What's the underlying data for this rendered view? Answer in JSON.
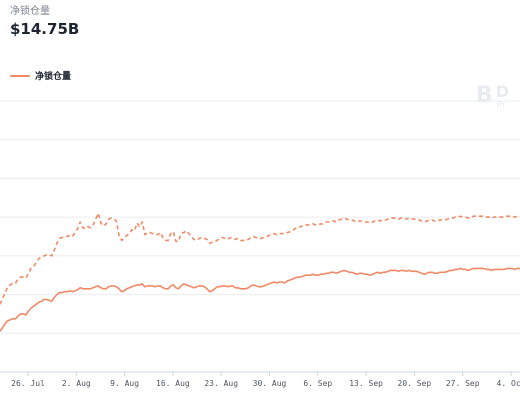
{
  "header": {
    "metric_label": "净锁仓量",
    "metric_value": "$14.75B"
  },
  "watermark": {
    "logo": "B",
    "title": "D",
    "subtitle": "Yo"
  },
  "colors": {
    "line": "#f08a66",
    "grid": "#e9ecef",
    "tick_text": "#4b5563"
  },
  "chart_data": {
    "type": "line",
    "title": "",
    "xlabel": "",
    "ylabel": "",
    "grid": true,
    "legend": "top-left",
    "x_tick_labels": [
      "26. Jul",
      "2. Aug",
      "9. Aug",
      "16. Aug",
      "23. Aug",
      "30. Aug",
      "6. Sep",
      "13. Sep",
      "20. Sep",
      "27. Sep",
      "4. Oct"
    ],
    "y_gridline_count": 7,
    "series": [
      {
        "name": "净锁仓量",
        "style": "solid",
        "values": [
          8.2,
          8.6,
          9.0,
          9.3,
          9.4,
          9.5,
          9.5,
          9.8,
          10.0,
          10.0,
          9.9,
          10.3,
          10.6,
          10.8,
          11.0,
          11.2,
          11.3,
          11.5,
          11.5,
          11.4,
          11.3,
          11.7,
          12.0,
          12.2,
          12.2,
          12.3,
          12.3,
          12.4,
          12.3,
          12.4,
          12.5,
          12.7,
          12.6,
          12.6,
          12.6,
          12.6,
          12.7,
          12.8,
          12.9,
          12.7,
          12.6,
          12.6,
          12.8,
          12.9,
          12.9,
          12.8,
          12.6,
          12.3,
          12.4,
          12.6,
          12.7,
          12.8,
          12.9,
          13.0,
          13.0,
          13.1,
          12.8,
          12.9,
          12.9,
          12.9,
          12.8,
          12.9,
          12.9,
          12.7,
          12.6,
          12.6,
          12.9,
          13.0,
          12.7,
          12.6,
          12.9,
          13.1,
          13.0,
          12.9,
          12.8,
          12.7,
          12.8,
          12.9,
          12.9,
          12.8,
          12.6,
          12.3,
          12.4,
          12.6,
          12.8,
          12.8,
          12.9,
          12.9,
          12.8,
          12.9,
          12.9,
          12.7,
          12.7,
          12.6,
          12.6,
          12.6,
          12.7,
          12.9,
          13.0,
          12.9,
          12.8,
          12.8,
          12.9,
          13.0,
          13.1,
          13.2,
          13.3,
          13.2,
          13.3,
          13.3,
          13.2,
          13.4,
          13.5,
          13.6,
          13.7,
          13.8,
          13.8,
          13.9,
          14.0,
          14.0,
          14.0,
          14.1,
          14.0,
          14.0,
          14.1,
          14.1,
          14.2,
          14.2,
          14.3,
          14.3,
          14.2,
          14.3,
          14.4,
          14.5,
          14.4,
          14.3,
          14.3,
          14.2,
          14.1,
          14.2,
          14.2,
          14.1,
          14.1,
          14.0,
          14.1,
          14.2,
          14.3,
          14.2,
          14.3,
          14.3,
          14.4,
          14.5,
          14.5,
          14.5,
          14.4,
          14.5,
          14.5,
          14.4,
          14.5,
          14.4,
          14.4,
          14.4,
          14.3,
          14.2,
          14.1,
          14.2,
          14.3,
          14.3,
          14.2,
          14.2,
          14.3,
          14.3,
          14.3,
          14.4,
          14.5,
          14.5,
          14.6,
          14.6,
          14.7,
          14.6,
          14.6,
          14.5,
          14.6,
          14.7,
          14.7,
          14.7,
          14.7,
          14.7,
          14.6,
          14.6,
          14.5,
          14.6,
          14.6,
          14.6,
          14.6,
          14.6,
          14.7,
          14.7,
          14.7,
          14.6,
          14.7,
          14.7
        ]
      },
      {
        "name": "",
        "style": "dashed",
        "values": [
          11.0,
          11.6,
          12.2,
          12.8,
          13.0,
          13.2,
          13.2,
          13.6,
          13.8,
          13.8,
          13.7,
          14.2,
          14.7,
          14.9,
          15.3,
          15.7,
          15.9,
          16.0,
          16.1,
          16.1,
          16.0,
          16.6,
          17.3,
          17.8,
          17.9,
          18.0,
          18.0,
          18.1,
          18.0,
          18.4,
          18.8,
          19.5,
          18.9,
          18.8,
          19.0,
          18.9,
          19.2,
          19.8,
          20.4,
          19.4,
          19.1,
          19.3,
          19.8,
          19.9,
          19.8,
          19.6,
          18.1,
          17.6,
          17.8,
          18.1,
          18.3,
          18.7,
          18.6,
          19.4,
          19.0,
          19.5,
          18.2,
          18.4,
          18.4,
          18.3,
          18.2,
          18.2,
          18.4,
          17.9,
          17.6,
          17.6,
          18.3,
          18.5,
          17.5,
          17.5,
          18.3,
          18.4,
          18.6,
          18.3,
          18.0,
          17.7,
          17.6,
          17.8,
          17.9,
          17.8,
          17.7,
          17.3,
          17.4,
          17.5,
          17.6,
          17.8,
          17.9,
          17.8,
          17.7,
          17.9,
          17.8,
          17.7,
          17.8,
          17.6,
          17.6,
          17.6,
          17.7,
          17.9,
          18.0,
          17.9,
          17.8,
          17.8,
          17.9,
          18.0,
          18.1,
          18.2,
          18.3,
          18.2,
          18.3,
          18.3,
          18.3,
          18.4,
          18.5,
          18.6,
          18.8,
          19.0,
          19.0,
          19.1,
          19.2,
          19.2,
          19.2,
          19.3,
          19.2,
          19.2,
          19.3,
          19.3,
          19.5,
          19.5,
          19.6,
          19.6,
          19.5,
          19.7,
          19.8,
          19.9,
          19.8,
          19.7,
          19.7,
          19.6,
          19.5,
          19.6,
          19.6,
          19.5,
          19.5,
          19.4,
          19.5,
          19.6,
          19.7,
          19.6,
          19.7,
          19.7,
          19.8,
          19.9,
          19.9,
          19.9,
          19.8,
          19.9,
          19.9,
          19.8,
          19.9,
          19.8,
          19.8,
          19.8,
          19.7,
          19.6,
          19.5,
          19.6,
          19.7,
          19.7,
          19.6,
          19.6,
          19.7,
          19.7,
          19.7,
          19.8,
          19.9,
          19.9,
          20.0,
          20.0,
          20.1,
          20.0,
          20.0,
          19.9,
          20.0,
          20.1,
          20.1,
          20.1,
          20.1,
          20.1,
          20.0,
          20.0,
          19.9,
          20.0,
          20.0,
          20.0,
          20.0,
          20.0,
          20.1,
          20.1,
          20.1,
          20.0,
          20.1,
          20.1
        ]
      }
    ]
  }
}
